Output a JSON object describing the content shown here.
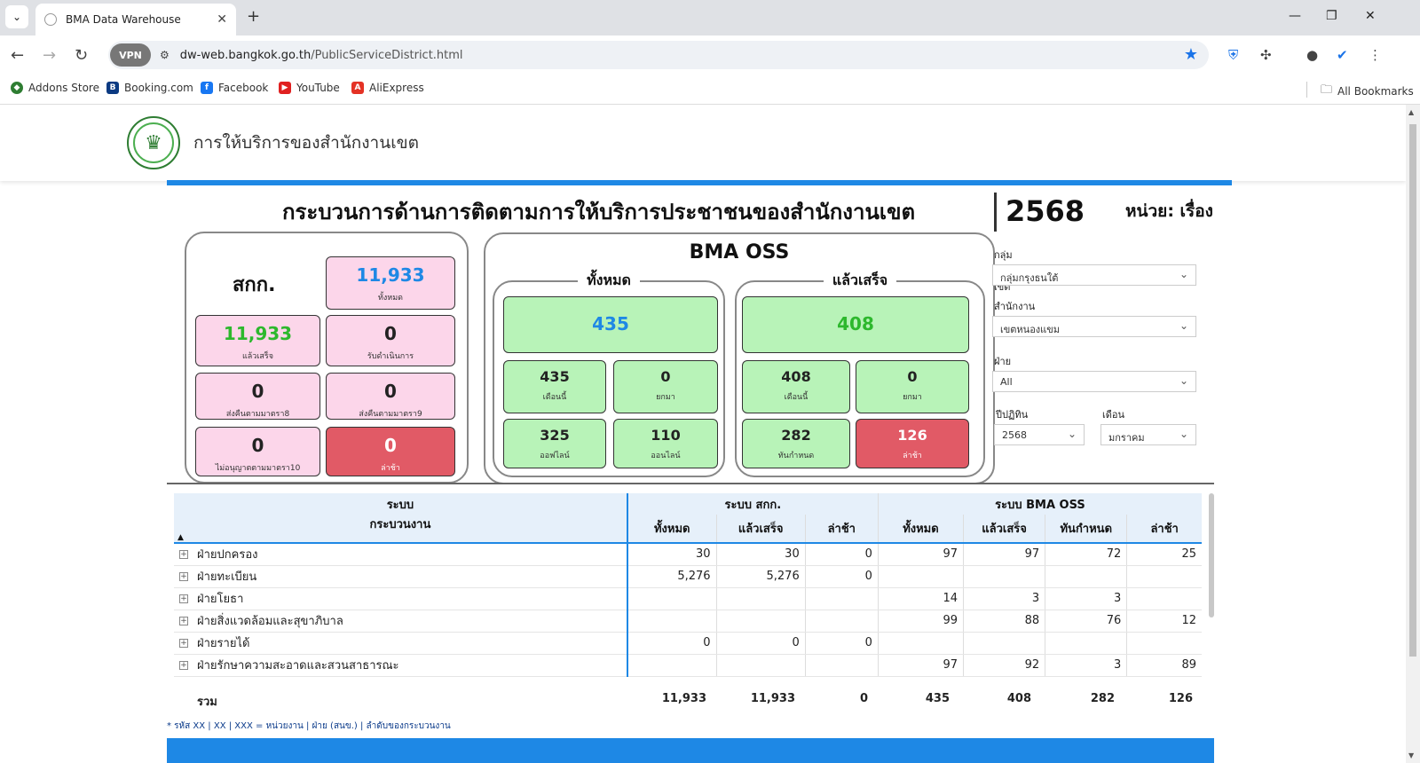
{
  "browser": {
    "tab_title": "BMA Data Warehouse",
    "url_host": "dw-web.bangkok.go.th",
    "url_path": "/PublicServiceDistrict.html",
    "vpn_label": "VPN",
    "bookmarks": [
      "Addons Store",
      "Booking.com",
      "Facebook",
      "YouTube",
      "AliExpress"
    ],
    "all_bookmarks": "All Bookmarks"
  },
  "header": {
    "site_title": "การให้บริการของสำนักงานเขต"
  },
  "report": {
    "title": "กระบวนการด้านการติดตามการให้บริการประชาชนของสำนักงานเขต",
    "year": "2568",
    "unit": "หน่วย: เรื่อง"
  },
  "sk": {
    "label": "สกก.",
    "total": {
      "value": "11,933",
      "label": "ทั้งหมด"
    },
    "done": {
      "value": "11,933",
      "label": "แล้วเสร็จ"
    },
    "in_progress": {
      "value": "0",
      "label": "รับดำเนินการ"
    },
    "returned8": {
      "value": "0",
      "label": "ส่งคืนตามมาตรา8"
    },
    "returned9": {
      "value": "0",
      "label": "ส่งคืนตามมาตรา9"
    },
    "not_allowed10": {
      "value": "0",
      "label": "ไม่อนุญาตตามมาตรา10"
    },
    "late": {
      "value": "0",
      "label": "ล่าช้า"
    }
  },
  "oss": {
    "title": "BMA OSS",
    "all": {
      "label": "ทั้งหมด",
      "total": "435",
      "this_month": {
        "value": "435",
        "label": "เดือนนี้"
      },
      "carried": {
        "value": "0",
        "label": "ยกมา"
      },
      "offline": {
        "value": "325",
        "label": "ออฟไลน์"
      },
      "online": {
        "value": "110",
        "label": "ออนไลน์"
      }
    },
    "done": {
      "label": "แล้วเสร็จ",
      "total": "408",
      "this_month": {
        "value": "408",
        "label": "เดือนนี้"
      },
      "carried": {
        "value": "0",
        "label": "ยกมา"
      },
      "on_time": {
        "value": "282",
        "label": "ทันกำหนด"
      },
      "late": {
        "value": "126",
        "label": "ล่าช้า"
      }
    }
  },
  "filters": {
    "group_label": "กลุ่มสำนักงานเขต",
    "group_value": "กลุ่มกรุงธนใต้",
    "district_label": "สำนักงานเขต",
    "district_value": "เขตหนองแขม",
    "dept_label": "ฝ่าย",
    "dept_value": "All",
    "year_label": "ปีปฏิทิน",
    "year_value": "2568",
    "month_label": "เดือน",
    "month_value": "มกราคม"
  },
  "table": {
    "h_system": "ระบบ",
    "h_process": "กระบวนงาน",
    "h_sk": "ระบบ สกก.",
    "h_oss": "ระบบ BMA OSS",
    "cols": [
      "ทั้งหมด",
      "แล้วเสร็จ",
      "ล่าช้า",
      "ทั้งหมด",
      "แล้วเสร็จ",
      "ทันกำหนด",
      "ล่าช้า"
    ],
    "rows": [
      {
        "name": "ฝ่ายปกครอง",
        "v": [
          "30",
          "30",
          "0",
          "97",
          "97",
          "72",
          "25"
        ]
      },
      {
        "name": "ฝ่ายทะเบียน",
        "v": [
          "5,276",
          "5,276",
          "0",
          "",
          "",
          "",
          ""
        ]
      },
      {
        "name": "ฝ่ายโยธา",
        "v": [
          "",
          "",
          "",
          "14",
          "3",
          "3",
          ""
        ]
      },
      {
        "name": "ฝ่ายสิ่งแวดล้อมและสุขาภิบาล",
        "v": [
          "",
          "",
          "",
          "99",
          "88",
          "76",
          "12"
        ]
      },
      {
        "name": "ฝ่ายรายได้",
        "v": [
          "0",
          "0",
          "0",
          "",
          "",
          "",
          ""
        ]
      },
      {
        "name": "ฝ่ายรักษาความสะอาดและสวนสาธารณะ",
        "v": [
          "",
          "",
          "",
          "97",
          "92",
          "3",
          "89"
        ]
      }
    ],
    "total_label": "รวม",
    "total": [
      "11,933",
      "11,933",
      "0",
      "435",
      "408",
      "282",
      "126"
    ]
  },
  "footnote": "* รหัส XX | XX | XXX = หน่วยงาน | ฝ่าย (สนข.) | ลำดับของกระบวนงาน",
  "colors": {
    "accent": "#1e88e5",
    "pink": "#fcd6ea",
    "green": "#b8f3b8",
    "red": "#e15a66"
  }
}
